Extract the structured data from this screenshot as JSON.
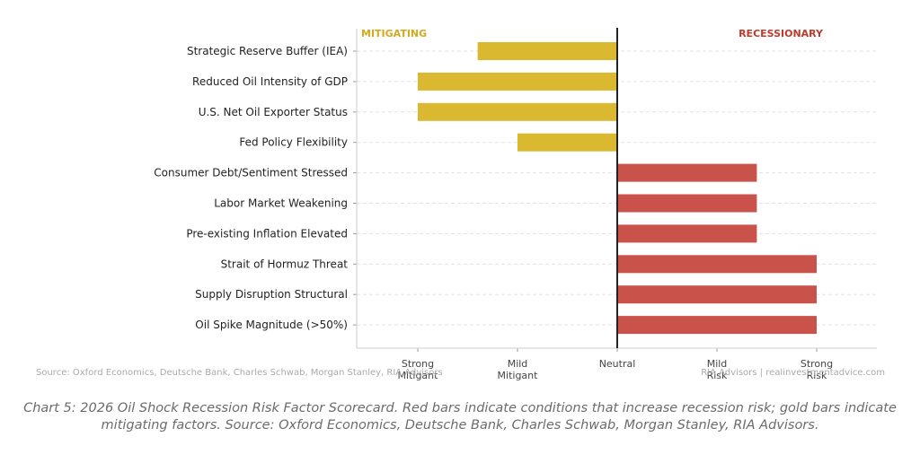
{
  "chart_data": {
    "type": "bar",
    "orientation": "horizontal",
    "categories": [
      "Strategic Reserve Buffer (IEA)",
      "Reduced Oil Intensity of GDP",
      "U.S. Net Oil Exporter Status",
      "Fed Policy Flexibility",
      "Consumer Debt/Sentiment Stressed",
      "Labor Market Weakening",
      "Pre-existing Inflation Elevated",
      "Strait of Hormuz Threat",
      "Supply Disruption Structural",
      "Oil Spike Magnitude (>50%)"
    ],
    "values": [
      -1.4,
      -2.0,
      -2.0,
      -1.0,
      1.4,
      1.4,
      1.4,
      2.0,
      2.0,
      2.0
    ],
    "xlim": [
      -2.6,
      2.6
    ],
    "x_ticks": [
      {
        "value": -2,
        "lines": [
          "Strong",
          "Mitigant"
        ]
      },
      {
        "value": -1,
        "lines": [
          "Mild",
          "Mitigant"
        ]
      },
      {
        "value": 0,
        "lines": [
          "Neutral"
        ]
      },
      {
        "value": 1,
        "lines": [
          "Mild",
          "Risk"
        ]
      },
      {
        "value": 2,
        "lines": [
          "Strong",
          "Risk"
        ]
      }
    ],
    "left_label": "MITIGATING",
    "right_label": "RECESSIONARY",
    "colors": {
      "mitigating": "#DAB830",
      "recessionary": "#C9534B",
      "left_label": "#D4A91C",
      "right_label": "#C0392B"
    },
    "grid": true,
    "source_left": "Source: Oxford Economics, Deutsche Bank, Charles Schwab, Morgan Stanley, RIA Advisors",
    "source_right": "RIA Advisors | realinvestmentadvice.com"
  },
  "caption": "Chart 5: 2026 Oil Shock Recession Risk Factor Scorecard. Red bars indicate conditions that increase recession risk; gold bars indicate mitigating factors. Source: Oxford Economics, Deutsche Bank, Charles Schwab, Morgan Stanley, RIA Advisors."
}
